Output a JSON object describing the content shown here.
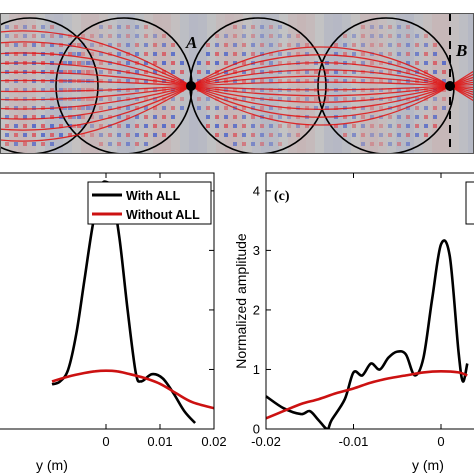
{
  "colors": {
    "with_all": "#000000",
    "without_all": "#cc1111",
    "field_positive": "#d8505a",
    "field_negative": "#4a60c8",
    "background_gray": "#bfbfbf"
  },
  "field_map": {
    "point_labels": [
      "A",
      "B"
    ],
    "description_marks": "circular lenses with red ray trajectories focusing at points A and B"
  },
  "chart_data": [
    {
      "type": "line",
      "panel": "b",
      "xlabel": "y (m)",
      "xlim": [
        -0.02,
        0.02
      ],
      "ylim": [
        0,
        4.3
      ],
      "x_ticks_visible": [
        "0",
        "0.01",
        "0.02"
      ],
      "legend": {
        "position": "top-right",
        "entries": [
          "With ALL",
          "Without ALL"
        ]
      },
      "series": [
        {
          "name": "With ALL",
          "color": "#000000",
          "x": [
            -0.01,
            -0.0085,
            -0.007,
            -0.0055,
            -0.004,
            -0.0025,
            -0.001,
            0,
            0.001,
            0.0025,
            0.004,
            0.0055,
            0.0065,
            0.0085,
            0.0105,
            0.0125,
            0.0145,
            0.0165
          ],
          "y": [
            0.75,
            0.8,
            1.0,
            1.6,
            2.5,
            3.4,
            4.05,
            4.15,
            4.0,
            3.2,
            2.0,
            0.95,
            0.8,
            0.92,
            0.85,
            0.6,
            0.3,
            0.1
          ]
        },
        {
          "name": "Without ALL",
          "color": "#cc1111",
          "x": [
            -0.01,
            -0.007,
            -0.004,
            -0.002,
            0,
            0.002,
            0.004,
            0.007,
            0.01,
            0.013,
            0.016,
            0.02
          ],
          "y": [
            0.8,
            0.88,
            0.94,
            0.97,
            0.98,
            0.97,
            0.93,
            0.86,
            0.76,
            0.6,
            0.45,
            0.35
          ]
        }
      ]
    },
    {
      "type": "line",
      "panel": "c",
      "panel_label": "(c)",
      "xlabel": "y (m)",
      "ylabel": "Normalized amplitude",
      "xlim": [
        -0.02,
        0.004
      ],
      "ylim": [
        0,
        4.3
      ],
      "x_ticks_visible": [
        "-0.02",
        "-0.01",
        "0"
      ],
      "y_ticks_visible": [
        "0",
        "1",
        "2",
        "3",
        "4"
      ],
      "series": [
        {
          "name": "With ALL",
          "color": "#000000",
          "x": [
            -0.02,
            -0.018,
            -0.016,
            -0.015,
            -0.014,
            -0.013,
            -0.0125,
            -0.011,
            -0.01,
            -0.009,
            -0.008,
            -0.007,
            -0.006,
            -0.005,
            -0.004,
            -0.003,
            -0.002,
            -0.001,
            0,
            0.001,
            0.002,
            0.0025,
            0.003
          ],
          "y": [
            0.55,
            0.35,
            0.25,
            0.3,
            0.15,
            0.0,
            0.15,
            0.5,
            0.95,
            0.9,
            1.1,
            1.0,
            1.2,
            1.3,
            1.25,
            0.9,
            1.2,
            2.2,
            3.1,
            2.9,
            1.3,
            0.8,
            1.1
          ]
        },
        {
          "name": "Without ALL",
          "color": "#cc1111",
          "x": [
            -0.02,
            -0.018,
            -0.016,
            -0.014,
            -0.012,
            -0.01,
            -0.008,
            -0.006,
            -0.004,
            -0.002,
            0,
            0.002,
            0.003
          ],
          "y": [
            0.18,
            0.3,
            0.42,
            0.5,
            0.6,
            0.68,
            0.78,
            0.85,
            0.9,
            0.95,
            0.97,
            0.95,
            0.9
          ]
        }
      ]
    }
  ]
}
